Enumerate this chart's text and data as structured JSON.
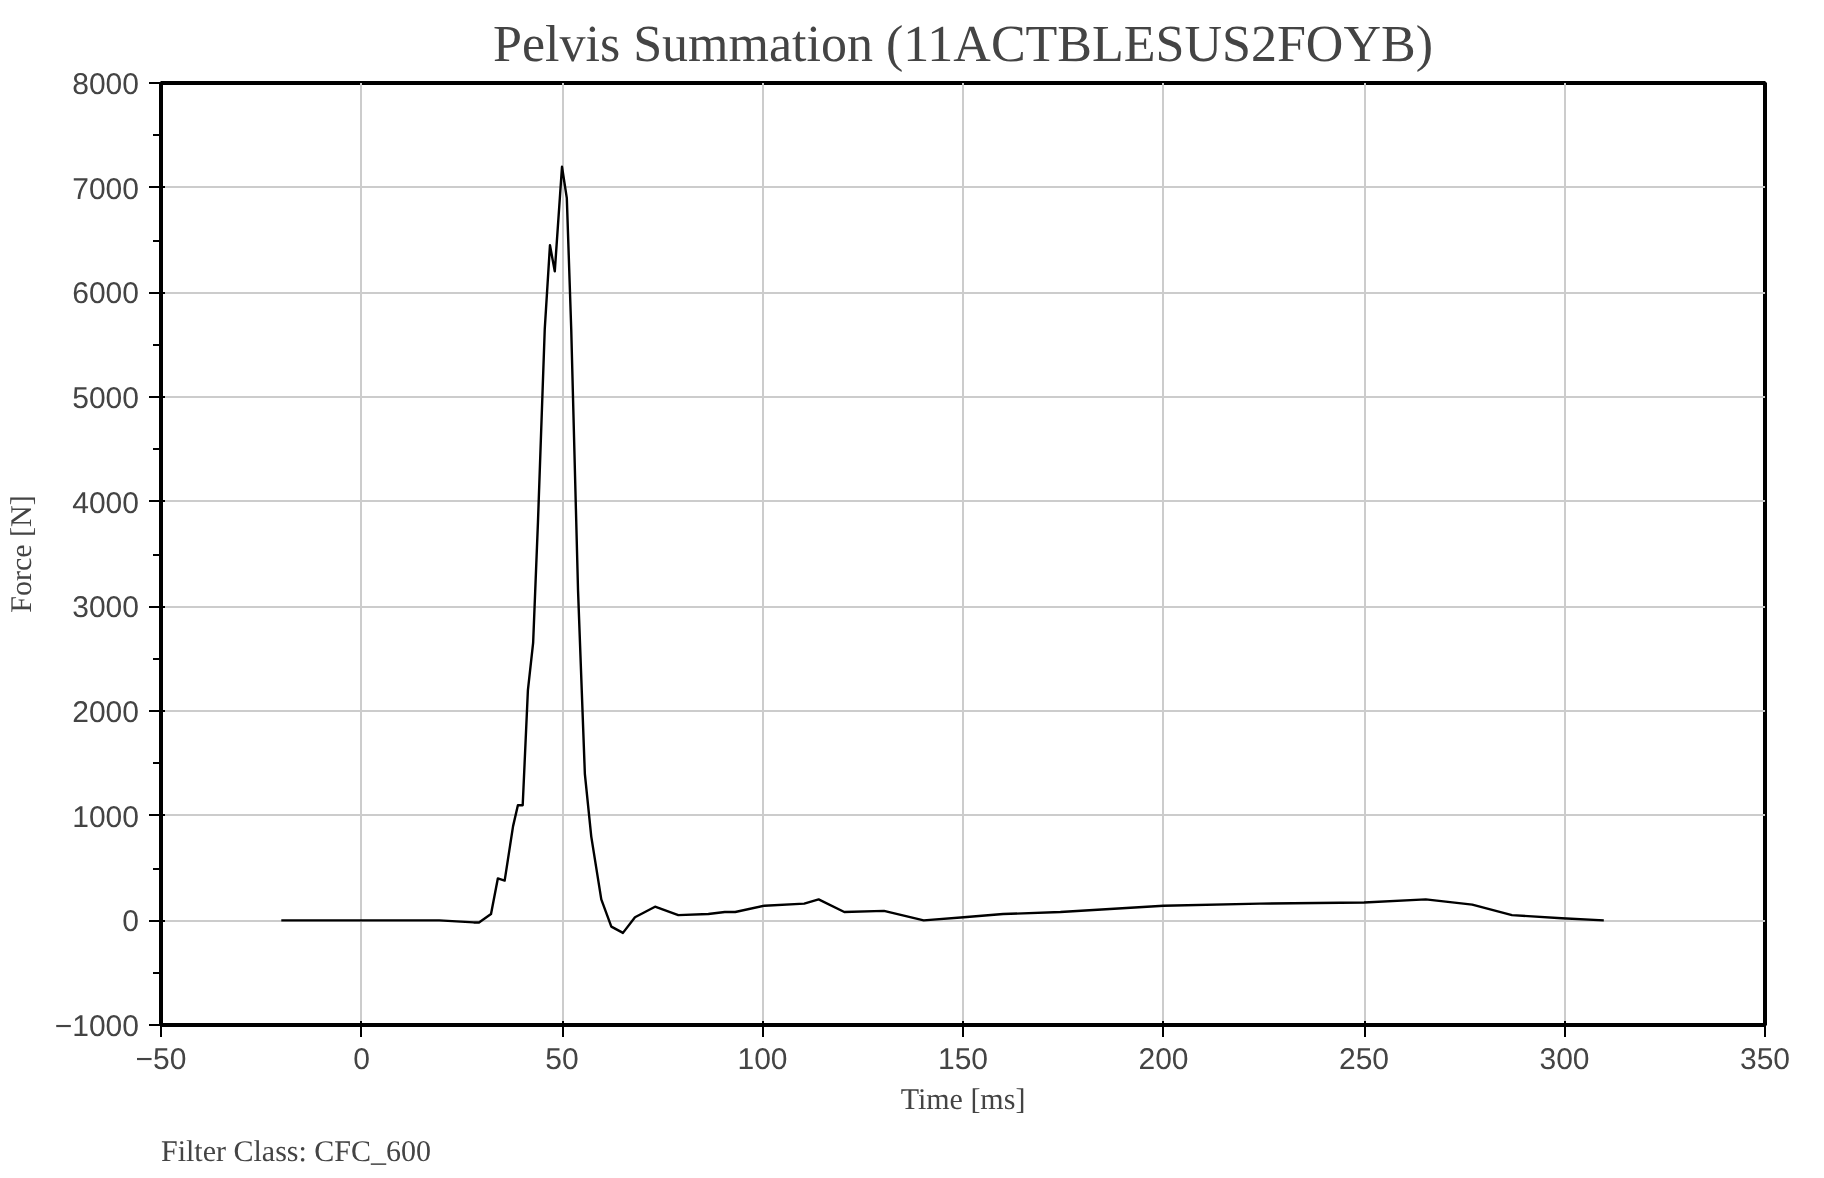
{
  "chart_data": {
    "type": "line",
    "title": "Pelvis Summation (11ACTBLESUS2FOYB)",
    "xlabel": "Time [ms]",
    "ylabel": "Force [N]",
    "annotations": [
      "Filter Class: CFC_600"
    ],
    "xlim": [
      -50,
      350
    ],
    "xticks": [
      -50,
      0,
      50,
      100,
      150,
      200,
      250,
      300,
      350
    ],
    "ylim": [
      -1000,
      8000
    ],
    "yticks": [
      -1000,
      0,
      1000,
      2000,
      3000,
      4000,
      5000,
      6000,
      7000,
      8000
    ],
    "grid": true,
    "marker": "none",
    "line_style": "solid",
    "series": [
      {
        "color": "#000000",
        "x": [
          -20,
          0,
          19.4,
          28,
          29.3,
          32.3,
          34,
          35.7,
          37.8,
          39,
          40.2,
          41.5,
          42.8,
          44,
          45.7,
          47,
          48.2,
          50,
          51.2,
          52.3,
          54,
          55.7,
          57.3,
          59.8,
          62.3,
          65.2,
          68.2,
          73.2,
          79,
          86.5,
          90.6,
          93.2,
          100.5,
          110.4,
          114,
          120.4,
          130.3,
          140.2,
          150.2,
          160,
          174.3,
          200,
          224,
          250,
          265.4,
          277,
          286.9,
          299.3,
          309.8
        ],
        "values": [
          0,
          0,
          0,
          -20,
          -20,
          60,
          400,
          380,
          900,
          1100,
          1100,
          2200,
          2650,
          3800,
          5650,
          6450,
          6200,
          7200,
          6900,
          5650,
          3150,
          1400,
          800,
          200,
          -60,
          -120,
          30,
          130,
          50,
          60,
          80,
          80,
          140,
          160,
          200,
          80,
          90,
          0,
          30,
          60,
          80,
          140,
          160,
          170,
          200,
          150,
          50,
          20,
          0
        ]
      }
    ]
  }
}
